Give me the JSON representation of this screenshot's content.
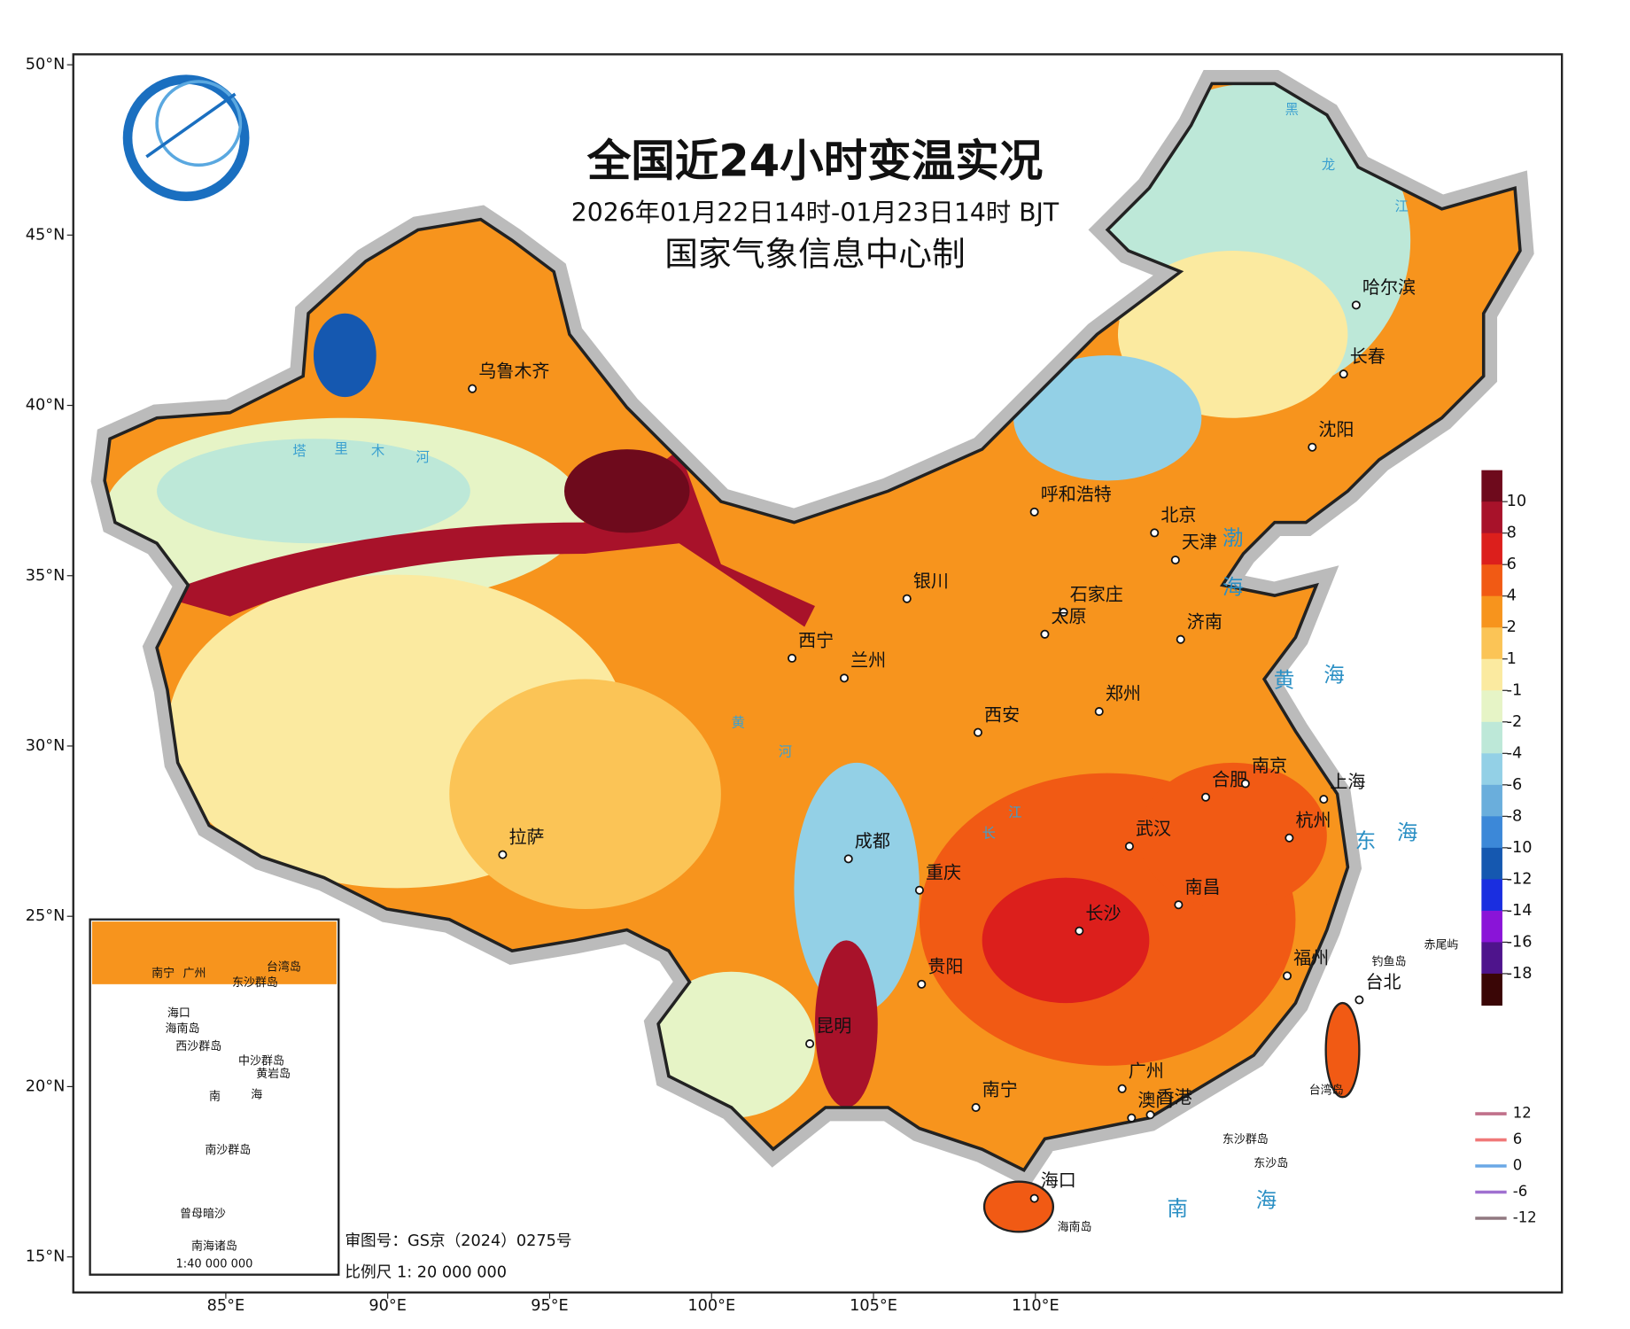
{
  "header": {
    "title": "全国近24小时变温实况",
    "subtitle": "2026年01月22日14时-01月23日14时 BJT",
    "producer": "国家气象信息中心制"
  },
  "axes": {
    "lat_ticks": [
      {
        "value": 50,
        "label": "50°N"
      },
      {
        "value": 45,
        "label": "45°N"
      },
      {
        "value": 40,
        "label": "40°N"
      },
      {
        "value": 35,
        "label": "35°N"
      },
      {
        "value": 30,
        "label": "30°N"
      },
      {
        "value": 25,
        "label": "25°N"
      },
      {
        "value": 20,
        "label": "20°N"
      },
      {
        "value": 15,
        "label": "15°N"
      }
    ],
    "lon_ticks": [
      {
        "value": 85,
        "label": "85°E"
      },
      {
        "value": 90,
        "label": "90°E"
      },
      {
        "value": 95,
        "label": "95°E"
      },
      {
        "value": 100,
        "label": "100°E"
      },
      {
        "value": 105,
        "label": "105°E"
      },
      {
        "value": 110,
        "label": "110°E"
      }
    ]
  },
  "legend": {
    "ticks": [
      10,
      8,
      6,
      4,
      2,
      1,
      -1,
      -2,
      -4,
      -6,
      -8,
      -10,
      -12,
      -14,
      -16,
      -18
    ],
    "colors": [
      "#6e0a1c",
      "#a8122a",
      "#dc1f1c",
      "#f15a14",
      "#f7941d",
      "#fbc456",
      "#fbeaa0",
      "#e6f4c6",
      "#bde8d8",
      "#93d0e6",
      "#6aaedc",
      "#3c88d8",
      "#1558b0",
      "#1a2ee0",
      "#8a14d8",
      "#4e148c",
      "#3a0606"
    ]
  },
  "contour_legend": {
    "values": [
      12,
      6,
      0,
      -6,
      -12
    ],
    "colors": [
      "#c0708a",
      "#f07878",
      "#6aa8e6",
      "#a070d0",
      "#907880"
    ]
  },
  "cities": [
    "乌鲁木齐",
    "哈尔滨",
    "长春",
    "沈阳",
    "呼和浩特",
    "北京",
    "天津",
    "石家庄",
    "银川",
    "太原",
    "济南",
    "西宁",
    "兰州",
    "西安",
    "郑州",
    "合肥",
    "南京",
    "上海",
    "拉萨",
    "成都",
    "武汉",
    "杭州",
    "重庆",
    "长沙",
    "南昌",
    "贵阳",
    "福州",
    "台北",
    "昆明",
    "广州",
    "南宁",
    "香港",
    "澳门",
    "海口"
  ],
  "seas": [
    "渤",
    "海",
    "黄",
    "海",
    "东",
    "海",
    "南",
    "海"
  ],
  "islands": [
    "赤尾屿",
    "钓鱼岛",
    "台湾岛",
    "东沙群岛",
    "东沙岛",
    "海南岛"
  ],
  "rivers": [
    "塔",
    "里",
    "木",
    "河",
    "黄",
    "河",
    "长",
    "江",
    "黑",
    "龙",
    "江"
  ],
  "footer": {
    "review": "审图号：GS京（2024）0275号",
    "scale": "比例尺 1: 20 000 000"
  },
  "inset": {
    "caption": "南海诸岛",
    "scale": "1:40 000 000",
    "labels": [
      "南宁",
      "广州",
      "台湾岛",
      "东沙群岛",
      "海口",
      "海南岛",
      "西沙群岛",
      "中沙群岛",
      "黄岩岛",
      "南",
      "海",
      "南沙群岛",
      "曾母暗沙"
    ]
  }
}
